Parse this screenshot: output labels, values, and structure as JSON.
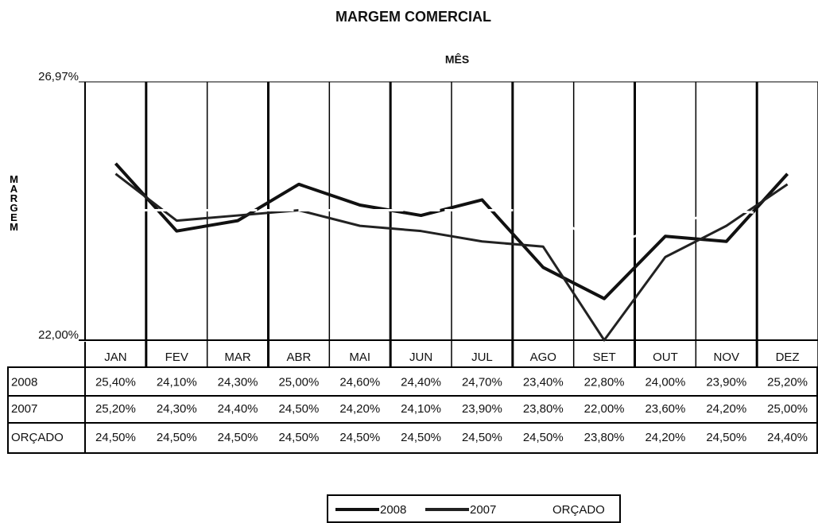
{
  "chart_data": {
    "type": "line",
    "title": "MARGEM COMERCIAL",
    "x_label": "MÊS",
    "y_label": "MARGEM",
    "categories": [
      "JAN",
      "FEV",
      "MAR",
      "ABR",
      "MAI",
      "JUN",
      "JUL",
      "AGO",
      "SET",
      "OUT",
      "NOV",
      "DEZ"
    ],
    "ylim": [
      22.0,
      26.97
    ],
    "yticks": [
      {
        "value": 26.97,
        "label": "26,97%"
      },
      {
        "value": 22.0,
        "label": "22,00%"
      }
    ],
    "series": [
      {
        "name": "2008",
        "color": "#111111",
        "values": [
          25.4,
          24.1,
          24.3,
          25.0,
          24.6,
          24.4,
          24.7,
          23.4,
          22.8,
          24.0,
          23.9,
          25.2
        ],
        "value_labels": [
          "25,40%",
          "24,10%",
          "24,30%",
          "25,00%",
          "24,60%",
          "24,40%",
          "24,70%",
          "23,40%",
          "22,80%",
          "24,00%",
          "23,90%",
          "25,20%"
        ]
      },
      {
        "name": "2007",
        "color": "#222222",
        "values": [
          25.2,
          24.3,
          24.4,
          24.5,
          24.2,
          24.1,
          23.9,
          23.8,
          22.0,
          23.6,
          24.2,
          25.0
        ],
        "value_labels": [
          "25,20%",
          "24,30%",
          "24,40%",
          "24,50%",
          "24,20%",
          "24,10%",
          "23,90%",
          "23,80%",
          "22,00%",
          "23,60%",
          "24,20%",
          "25,00%"
        ]
      },
      {
        "name": "ORÇADO",
        "color": "#ffffff",
        "values": [
          24.5,
          24.5,
          24.5,
          24.5,
          24.5,
          24.5,
          24.5,
          24.5,
          23.8,
          24.2,
          24.5,
          24.4
        ],
        "value_labels": [
          "24,50%",
          "24,50%",
          "24,50%",
          "24,50%",
          "24,50%",
          "24,50%",
          "24,50%",
          "24,50%",
          "23,80%",
          "24,20%",
          "24,50%",
          "24,40%"
        ]
      }
    ]
  }
}
